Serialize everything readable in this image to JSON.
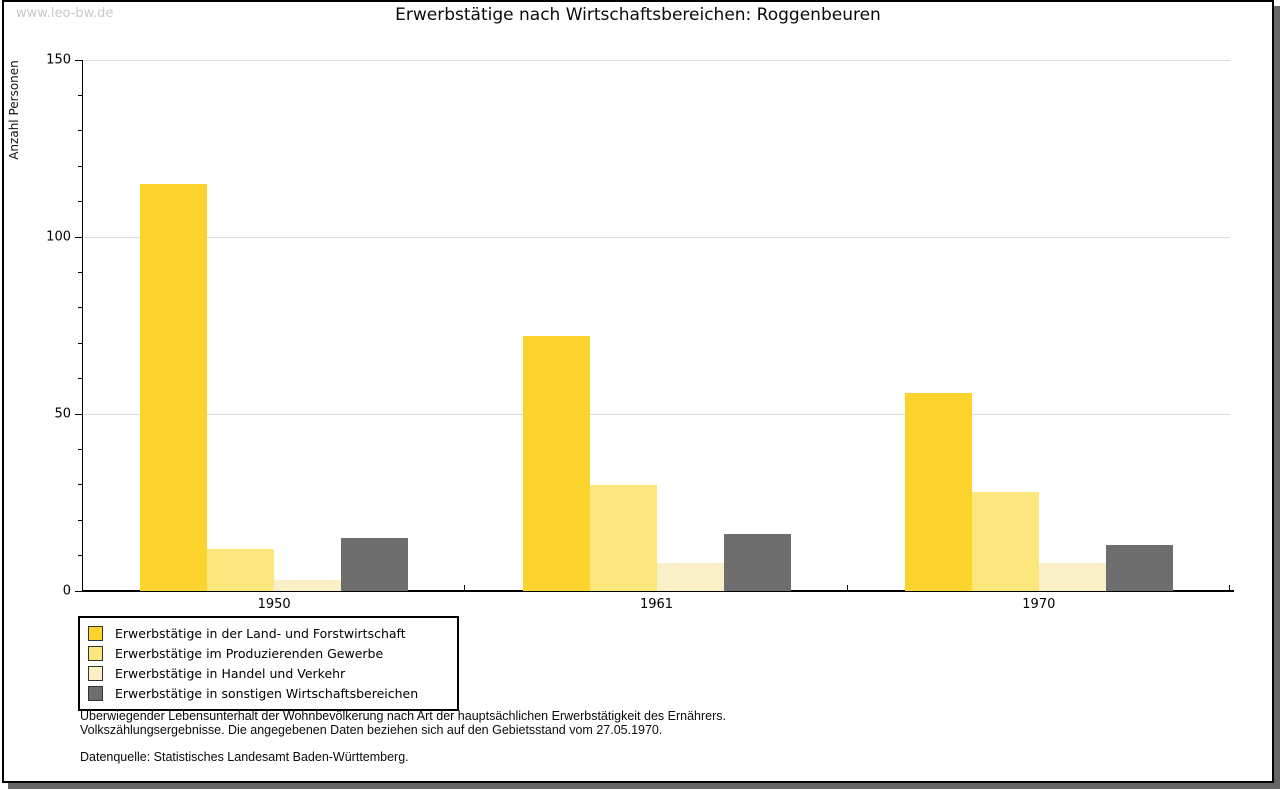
{
  "watermark": "www.leo-bw.de",
  "title": "Erwerbstätige nach Wirtschaftsbereichen: Roggenbeuren",
  "y_axis": {
    "label": "Anzahl Personen",
    "major_ticks": [
      0,
      50,
      100,
      150
    ],
    "minor_step": 10,
    "max": 150
  },
  "chart_data": {
    "type": "bar",
    "title": "Erwerbstätige nach Wirtschaftsbereichen: Roggenbeuren",
    "categories": [
      "1950",
      "1961",
      "1970"
    ],
    "series": [
      {
        "name": "Erwerbstätige in der Land- und Forstwirtschaft",
        "color": "#FCD42D",
        "values": [
          115,
          72,
          56
        ]
      },
      {
        "name": "Erwerbstätige im Produzierenden Gewerbe",
        "color": "#FBE77D",
        "values": [
          12,
          30,
          28
        ]
      },
      {
        "name": "Erwerbstätige in Handel und Verkehr",
        "color": "#FAF0C8",
        "values": [
          3,
          8,
          8
        ]
      },
      {
        "name": "Erwerbstätige in sonstigen Wirtschaftsbereichen",
        "color": "#6E6E6E",
        "values": [
          15,
          16,
          13
        ]
      }
    ],
    "xlabel": "",
    "ylabel": "Anzahl Personen",
    "ylim": [
      0,
      150
    ],
    "grid": "horizontal",
    "grid_color": "#dddddd",
    "legend_position": "bottom-left"
  },
  "footnotes": {
    "line1": "Überwiegender Lebensunterhalt der Wohnbevölkerung nach Art der hauptsächlichen Erwerbstätigkeit des Ernährers.",
    "line2": "Volkszählungsergebnisse. Die angegebenen Daten beziehen sich auf den Gebietsstand vom 27.05.1970.",
    "source": "Datenquelle: Statistisches Landesamt Baden-Württemberg."
  }
}
